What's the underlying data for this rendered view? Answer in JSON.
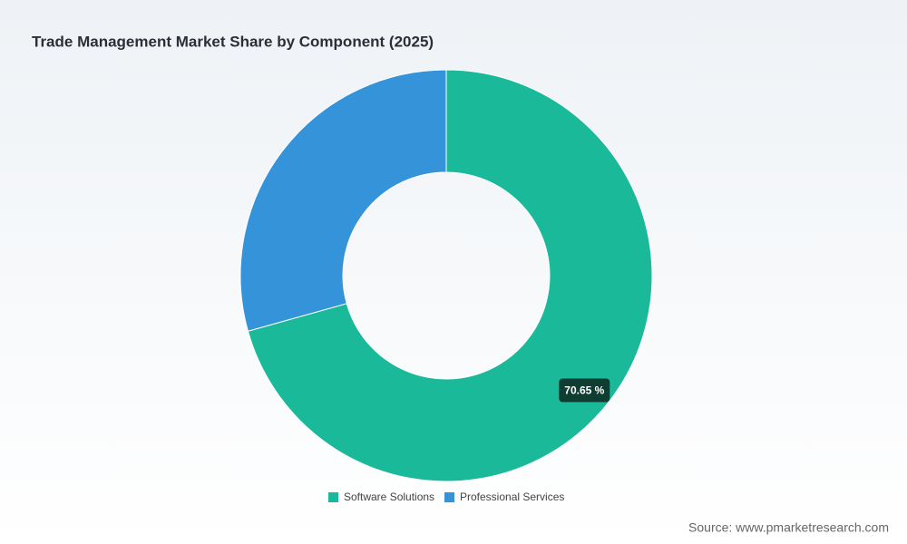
{
  "chart_data": {
    "type": "donut",
    "title": "Trade Management Market Share by Component (2025)",
    "categories": [
      "Software Solutions",
      "Professional Services"
    ],
    "values": [
      70.65,
      29.35
    ],
    "value_labels": [
      "70.65 %",
      null
    ],
    "colors": [
      "#1ab99a",
      "#3493d9"
    ],
    "legend": "bottom",
    "source": "Source: www.pmarketresearch.com"
  }
}
